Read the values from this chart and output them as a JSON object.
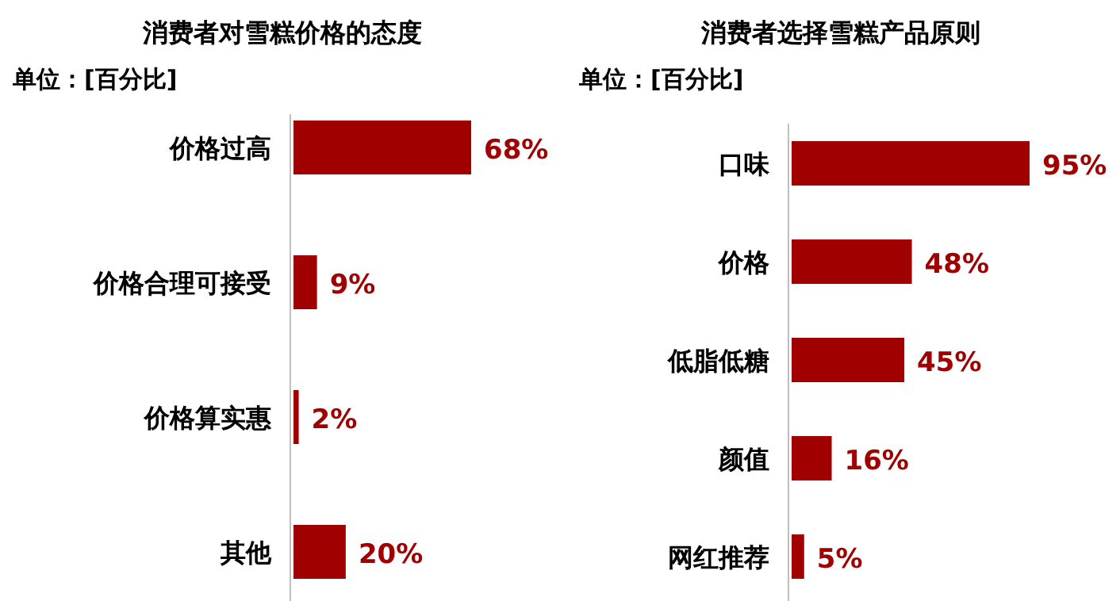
{
  "chart_data": [
    {
      "type": "bar",
      "orientation": "horizontal",
      "title": "消费者对雪糕价格的态度",
      "subtitle": "单位：[百分比]",
      "categories": [
        "价格过高",
        "价格合理可接受",
        "价格算实惠",
        "其他"
      ],
      "values": [
        68,
        9,
        2,
        20
      ],
      "value_labels": [
        "68%",
        "9%",
        "2%",
        "20%"
      ],
      "color": "#a00000"
    },
    {
      "type": "bar",
      "orientation": "horizontal",
      "title": "消费者选择雪糕产品原则",
      "subtitle": "单位：[百分比]",
      "categories": [
        "口味",
        "价格",
        "低脂低糖",
        "颜值",
        "网红推荐"
      ],
      "values": [
        95,
        48,
        45,
        16,
        5
      ],
      "value_labels": [
        "95%",
        "48%",
        "45%",
        "16%",
        "5%"
      ],
      "color": "#a00000"
    }
  ]
}
